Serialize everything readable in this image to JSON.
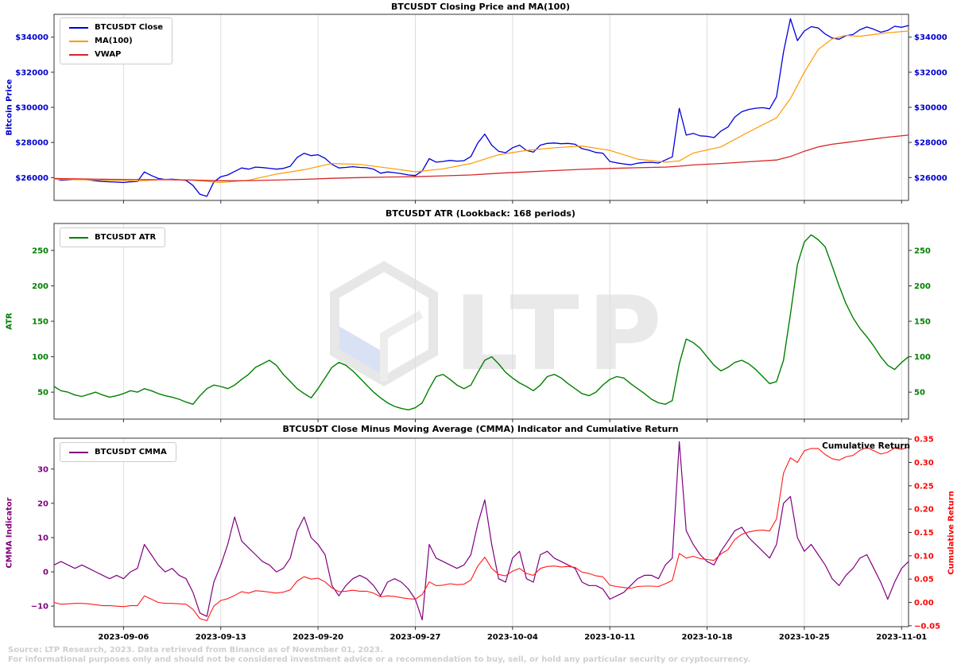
{
  "watermark": {
    "text": "LTP"
  },
  "footer": {
    "line1": "Source: LTP Research, 2023. Data retrieved from Binance as of November 01, 2023.",
    "line2": "For informational purposes only and should not be considered investment advice or a recommendation to buy, sell, or hold any particular security or cryptocurrency."
  },
  "x_axis": {
    "domain": [
      0,
      61.5
    ],
    "sample_step": 0.5,
    "tick_days": [
      5,
      12,
      19,
      26,
      33,
      40,
      47,
      54,
      61
    ],
    "labels": [
      "2023-09-06",
      "2023-09-13",
      "2023-09-20",
      "2023-09-27",
      "2023-10-04",
      "2023-10-11",
      "2023-10-18",
      "2023-10-25",
      "2023-11-01"
    ]
  },
  "chart_data": [
    {
      "type": "line",
      "title": "BTCUSDT Closing Price and MA(100)",
      "ylabel": "Bitcoin Price",
      "axis_color": "#0000cc",
      "ylim": [
        24700,
        35300
      ],
      "yticks": [
        26000,
        28000,
        30000,
        32000,
        34000
      ],
      "ytick_labels": [
        "$26000",
        "$28000",
        "$30000",
        "$32000",
        "$34000"
      ],
      "series": [
        {
          "name": "BTCUSDT Close",
          "color": "#0000dd",
          "width": 1.3,
          "values": [
            25950,
            25850,
            25870,
            25890,
            25910,
            25870,
            25820,
            25780,
            25760,
            25740,
            25720,
            25760,
            25780,
            26320,
            26120,
            25950,
            25890,
            25910,
            25880,
            25840,
            25550,
            25050,
            24930,
            25750,
            26050,
            26150,
            26350,
            26550,
            26480,
            26600,
            26570,
            26530,
            26480,
            26520,
            26650,
            27150,
            27380,
            27250,
            27300,
            27100,
            26750,
            26550,
            26580,
            26620,
            26580,
            26560,
            26480,
            26250,
            26320,
            26280,
            26220,
            26150,
            26120,
            26380,
            27080,
            26880,
            26920,
            26980,
            26940,
            26960,
            27200,
            27970,
            28480,
            27850,
            27500,
            27420,
            27700,
            27850,
            27550,
            27450,
            27850,
            27950,
            27970,
            27930,
            27950,
            27900,
            27650,
            27560,
            27430,
            27390,
            26920,
            26840,
            26780,
            26730,
            26820,
            26860,
            26870,
            26830,
            27000,
            27180,
            29950,
            28420,
            28520,
            28380,
            28350,
            28280,
            28650,
            28880,
            29450,
            29750,
            29880,
            29950,
            29980,
            29920,
            30600,
            33150,
            35050,
            33800,
            34350,
            34600,
            34520,
            34180,
            33950,
            33880,
            34080,
            34150,
            34420,
            34580,
            34450,
            34280,
            34380,
            34620,
            34560,
            34660
          ]
        },
        {
          "name": "MA(100)",
          "color": "#ff9900",
          "width": 1.2,
          "keypoints": [
            [
              0,
              25900
            ],
            [
              2,
              25880
            ],
            [
              4,
              25850
            ],
            [
              6,
              25800
            ],
            [
              8,
              25900
            ],
            [
              10,
              25850
            ],
            [
              12,
              25720
            ],
            [
              14,
              25850
            ],
            [
              16,
              26200
            ],
            [
              18,
              26450
            ],
            [
              20,
              26800
            ],
            [
              22,
              26750
            ],
            [
              24,
              26550
            ],
            [
              26,
              26330
            ],
            [
              28,
              26500
            ],
            [
              30,
              26800
            ],
            [
              32,
              27300
            ],
            [
              34,
              27550
            ],
            [
              36,
              27700
            ],
            [
              38,
              27800
            ],
            [
              40,
              27550
            ],
            [
              42,
              27050
            ],
            [
              44,
              26880
            ],
            [
              45,
              26950
            ],
            [
              46,
              27400
            ],
            [
              48,
              27750
            ],
            [
              50,
              28600
            ],
            [
              52,
              29400
            ],
            [
              53,
              30500
            ],
            [
              54,
              32000
            ],
            [
              55,
              33300
            ],
            [
              56,
              33900
            ],
            [
              57,
              34100
            ],
            [
              58,
              34050
            ],
            [
              59,
              34150
            ],
            [
              60,
              34250
            ],
            [
              61.5,
              34350
            ]
          ]
        },
        {
          "name": "VWAP",
          "color": "#d62728",
          "width": 1.3,
          "keypoints": [
            [
              0,
              25950
            ],
            [
              4,
              25900
            ],
            [
              8,
              25880
            ],
            [
              10,
              25860
            ],
            [
              12,
              25820
            ],
            [
              14,
              25830
            ],
            [
              16,
              25860
            ],
            [
              18,
              25900
            ],
            [
              20,
              25960
            ],
            [
              22,
              26000
            ],
            [
              24,
              26030
            ],
            [
              26,
              26050
            ],
            [
              28,
              26100
            ],
            [
              30,
              26150
            ],
            [
              32,
              26250
            ],
            [
              34,
              26320
            ],
            [
              36,
              26400
            ],
            [
              38,
              26470
            ],
            [
              40,
              26520
            ],
            [
              42,
              26560
            ],
            [
              44,
              26600
            ],
            [
              45,
              26650
            ],
            [
              46,
              26720
            ],
            [
              48,
              26800
            ],
            [
              50,
              26900
            ],
            [
              52,
              27000
            ],
            [
              53,
              27200
            ],
            [
              54,
              27500
            ],
            [
              55,
              27750
            ],
            [
              56,
              27900
            ],
            [
              57,
              28000
            ],
            [
              58,
              28100
            ],
            [
              59,
              28200
            ],
            [
              60,
              28300
            ],
            [
              61.5,
              28420
            ]
          ]
        }
      ]
    },
    {
      "type": "line",
      "title": "BTCUSDT ATR (Lookback: 168 periods)",
      "ylabel": "ATR",
      "axis_color": "#008000",
      "ylim": [
        12,
        288
      ],
      "yticks": [
        50,
        100,
        150,
        200,
        250
      ],
      "ytick_labels": [
        "50",
        "100",
        "150",
        "200",
        "250"
      ],
      "series": [
        {
          "name": "BTCUSDT ATR",
          "color": "#008000",
          "width": 1.4,
          "values": [
            58,
            52,
            50,
            46,
            44,
            47,
            50,
            46,
            43,
            45,
            48,
            52,
            50,
            55,
            52,
            48,
            45,
            43,
            40,
            36,
            33,
            45,
            55,
            60,
            58,
            55,
            60,
            68,
            75,
            85,
            90,
            95,
            88,
            75,
            65,
            55,
            48,
            42,
            55,
            70,
            85,
            92,
            88,
            80,
            70,
            60,
            50,
            42,
            35,
            30,
            27,
            25,
            28,
            35,
            55,
            72,
            75,
            68,
            60,
            55,
            60,
            78,
            95,
            100,
            90,
            78,
            70,
            63,
            58,
            52,
            60,
            72,
            75,
            70,
            62,
            55,
            48,
            45,
            50,
            60,
            68,
            72,
            70,
            62,
            55,
            48,
            40,
            35,
            33,
            38,
            90,
            125,
            120,
            112,
            100,
            88,
            80,
            85,
            92,
            95,
            90,
            82,
            72,
            62,
            65,
            95,
            160,
            230,
            262,
            272,
            265,
            255,
            228,
            200,
            175,
            155,
            140,
            128,
            115,
            100,
            88,
            82,
            92,
            100
          ]
        }
      ]
    },
    {
      "type": "line",
      "title": "BTCUSDT Close Minus Moving Average (CMMA) Indicator and Cumulative Return",
      "ylabel": "CMMA Indicator",
      "axis_color": "#800080",
      "ylim": [
        -16,
        39
      ],
      "yticks": [
        30,
        20,
        10,
        0,
        -10
      ],
      "ytick_labels": [
        "30",
        "20",
        "10",
        "0",
        "−10"
      ],
      "right_ylabel": "Cumulative Return",
      "right_axis_color": "#ff0000",
      "right_ylim": [
        -0.052,
        0.352
      ],
      "right_yticks": [
        0.35,
        0.3,
        0.25,
        0.2,
        0.15,
        0.1,
        0.05,
        0.0,
        -0.05
      ],
      "right_ytick_labels": [
        "0.35",
        "0.30",
        "0.25",
        "0.20",
        "0.15",
        "0.10",
        "0.05",
        "0.00",
        "−0.05"
      ],
      "annotation": "Cumulative Return",
      "series": [
        {
          "name": "BTCUSDT CMMA",
          "color": "#800080",
          "width": 1.2,
          "values": [
            2,
            3,
            2,
            1,
            2,
            1,
            0,
            -1,
            -2,
            -1,
            -2,
            0,
            1,
            8,
            5,
            2,
            0,
            1,
            -1,
            -2,
            -6,
            -12,
            -13,
            -3,
            2,
            8,
            16,
            9,
            7,
            5,
            3,
            2,
            0,
            1,
            4,
            12,
            16,
            10,
            8,
            5,
            -4,
            -7,
            -4,
            -2,
            -1,
            -2,
            -4,
            -7,
            -3,
            -2,
            -3,
            -5,
            -8,
            -14,
            8,
            4,
            3,
            2,
            1,
            2,
            5,
            14,
            21,
            8,
            -2,
            -3,
            4,
            6,
            -2,
            -3,
            5,
            6,
            4,
            3,
            2,
            1,
            -3,
            -4,
            -4,
            -5,
            -8,
            -7,
            -6,
            -4,
            -2,
            -1,
            -1,
            -2,
            2,
            4,
            38,
            12,
            8,
            5,
            3,
            2,
            6,
            9,
            12,
            13,
            10,
            8,
            6,
            4,
            8,
            20,
            22,
            10,
            6,
            8,
            5,
            2,
            -2,
            -4,
            -1,
            1,
            4,
            5,
            1,
            -3,
            -8,
            -3,
            1,
            3
          ]
        },
        {
          "name": "Cumulative Return",
          "color": "#ff1a1a",
          "width": 1.1,
          "axis": "right",
          "in_legend": false,
          "values": [
            0.0,
            -0.004,
            -0.003,
            -0.002,
            -0.002,
            -0.003,
            -0.005,
            -0.007,
            -0.007,
            -0.008,
            -0.009,
            -0.007,
            -0.007,
            0.014,
            0.007,
            0.0,
            -0.002,
            -0.002,
            -0.003,
            -0.004,
            -0.015,
            -0.035,
            -0.039,
            -0.008,
            0.004,
            0.008,
            0.015,
            0.023,
            0.02,
            0.025,
            0.024,
            0.022,
            0.02,
            0.022,
            0.027,
            0.046,
            0.055,
            0.05,
            0.052,
            0.044,
            0.031,
            0.023,
            0.024,
            0.026,
            0.024,
            0.024,
            0.02,
            0.012,
            0.014,
            0.013,
            0.01,
            0.008,
            0.007,
            0.017,
            0.044,
            0.036,
            0.037,
            0.04,
            0.038,
            0.039,
            0.048,
            0.078,
            0.097,
            0.073,
            0.06,
            0.057,
            0.067,
            0.073,
            0.062,
            0.058,
            0.073,
            0.077,
            0.078,
            0.076,
            0.077,
            0.075,
            0.065,
            0.062,
            0.057,
            0.055,
            0.037,
            0.034,
            0.032,
            0.03,
            0.034,
            0.035,
            0.035,
            0.034,
            0.04,
            0.047,
            0.105,
            0.095,
            0.099,
            0.094,
            0.092,
            0.09,
            0.104,
            0.113,
            0.135,
            0.146,
            0.151,
            0.154,
            0.155,
            0.153,
            0.179,
            0.277,
            0.31,
            0.3,
            0.325,
            0.33,
            0.33,
            0.317,
            0.308,
            0.305,
            0.312,
            0.315,
            0.326,
            0.332,
            0.325,
            0.318,
            0.322,
            0.331,
            0.328,
            0.333
          ]
        }
      ]
    }
  ]
}
